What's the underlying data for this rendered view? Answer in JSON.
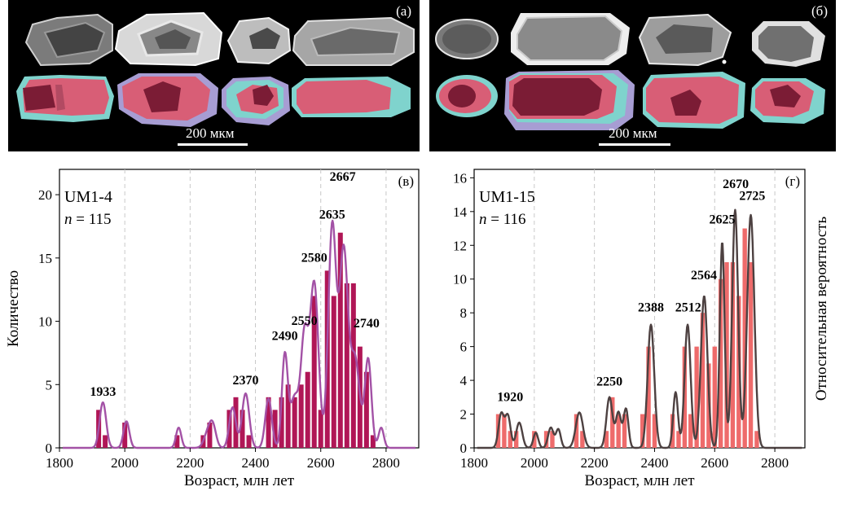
{
  "photos": [
    {
      "tag": "(а)",
      "scale_label": "200 мкм"
    },
    {
      "tag": "(б)",
      "scale_label": "200 мкм"
    }
  ],
  "colors": {
    "bar_left": "#b01656",
    "curve_left": "#a352a6",
    "bar_right": "#ee6b6b",
    "curve_right": "#4d4141",
    "zone_light": "#d85e76",
    "zone_dark": "#7b1c35",
    "zone_cyan": "#7fd3cd",
    "zone_violet": "#a79dd3"
  },
  "chart_data": [
    {
      "type": "bar",
      "panel": "(в)",
      "sample": "UM1-4",
      "n_label": "n",
      "n_value": "= 115",
      "xlabel": "Возраст, млн лет",
      "ylabel": "Количество",
      "xlim": [
        1800,
        2900
      ],
      "ylim": [
        0,
        22
      ],
      "xticks": [
        1800,
        2000,
        2200,
        2400,
        2600,
        2800
      ],
      "yticks": [
        0,
        5,
        10,
        15,
        20
      ],
      "grid_x": [
        2000,
        2200,
        2400,
        2600,
        2800
      ],
      "bin_width": 20,
      "bars": [
        {
          "x": 1920,
          "value": 3
        },
        {
          "x": 1940,
          "value": 1
        },
        {
          "x": 2000,
          "value": 2
        },
        {
          "x": 2160,
          "value": 1
        },
        {
          "x": 2240,
          "value": 1
        },
        {
          "x": 2260,
          "value": 2
        },
        {
          "x": 2320,
          "value": 3
        },
        {
          "x": 2340,
          "value": 4
        },
        {
          "x": 2360,
          "value": 3
        },
        {
          "x": 2380,
          "value": 1
        },
        {
          "x": 2440,
          "value": 4
        },
        {
          "x": 2460,
          "value": 3
        },
        {
          "x": 2480,
          "value": 4
        },
        {
          "x": 2500,
          "value": 5
        },
        {
          "x": 2520,
          "value": 4
        },
        {
          "x": 2540,
          "value": 5
        },
        {
          "x": 2560,
          "value": 6
        },
        {
          "x": 2580,
          "value": 12
        },
        {
          "x": 2600,
          "value": 3
        },
        {
          "x": 2620,
          "value": 14
        },
        {
          "x": 2640,
          "value": 12
        },
        {
          "x": 2660,
          "value": 17
        },
        {
          "x": 2680,
          "value": 13
        },
        {
          "x": 2700,
          "value": 13
        },
        {
          "x": 2720,
          "value": 8
        },
        {
          "x": 2740,
          "value": 6
        },
        {
          "x": 2760,
          "value": 1
        }
      ],
      "curve": [
        {
          "mu": 1933,
          "sd": 10,
          "h": 3.6
        },
        {
          "mu": 2005,
          "sd": 9,
          "h": 2.1
        },
        {
          "mu": 2165,
          "sd": 8,
          "h": 1.6
        },
        {
          "mu": 2255,
          "sd": 12,
          "h": 1.2
        },
        {
          "mu": 2270,
          "sd": 10,
          "h": 1.5
        },
        {
          "mu": 2330,
          "sd": 10,
          "h": 3.2
        },
        {
          "mu": 2370,
          "sd": 11,
          "h": 4.3
        },
        {
          "mu": 2440,
          "sd": 10,
          "h": 3.9
        },
        {
          "mu": 2490,
          "sd": 9,
          "h": 7.3
        },
        {
          "mu": 2520,
          "sd": 13,
          "h": 4.0
        },
        {
          "mu": 2550,
          "sd": 11,
          "h": 8.5
        },
        {
          "mu": 2580,
          "sd": 13,
          "h": 13.0
        },
        {
          "mu": 2635,
          "sd": 12,
          "h": 17.5
        },
        {
          "mu": 2670,
          "sd": 13,
          "h": 15.5
        },
        {
          "mu": 2705,
          "sd": 14,
          "h": 7.0
        },
        {
          "mu": 2745,
          "sd": 10,
          "h": 7.0
        },
        {
          "mu": 2785,
          "sd": 8,
          "h": 1.6
        }
      ],
      "peak_labels": [
        {
          "x": 1933,
          "y": 3.6,
          "text": "1933"
        },
        {
          "x": 2370,
          "y": 4.5,
          "text": "2370"
        },
        {
          "x": 2490,
          "y": 8.0,
          "text": "2490"
        },
        {
          "x": 2550,
          "y": 9.2,
          "text": "2550"
        },
        {
          "x": 2580,
          "y": 14.2,
          "text": "2580"
        },
        {
          "x": 2635,
          "y": 17.6,
          "text": "2635"
        },
        {
          "x": 2667,
          "y": 20.6,
          "text": "2667"
        },
        {
          "x": 2740,
          "y": 9.0,
          "text": "2740"
        }
      ]
    },
    {
      "type": "bar",
      "panel": "(г)",
      "sample": "UM1-15",
      "n_label": "n",
      "n_value": "= 116",
      "xlabel": "Возраст, млн лет",
      "ylabel": "Относительная вероятность",
      "xlim": [
        1800,
        2900
      ],
      "ylim": [
        0,
        16.5
      ],
      "xticks": [
        1800,
        2000,
        2200,
        2400,
        2600,
        2800
      ],
      "yticks": [
        0,
        2,
        4,
        6,
        8,
        10,
        12,
        14,
        16
      ],
      "grid_x": [
        2000,
        2200,
        2400,
        2600,
        2800
      ],
      "bin_width": 20,
      "bars": [
        {
          "x": 1880,
          "value": 2
        },
        {
          "x": 1900,
          "value": 2
        },
        {
          "x": 1920,
          "value": 1
        },
        {
          "x": 1940,
          "value": 1
        },
        {
          "x": 2000,
          "value": 1
        },
        {
          "x": 2040,
          "value": 1
        },
        {
          "x": 2060,
          "value": 1
        },
        {
          "x": 2140,
          "value": 2
        },
        {
          "x": 2160,
          "value": 1
        },
        {
          "x": 2240,
          "value": 1
        },
        {
          "x": 2260,
          "value": 3
        },
        {
          "x": 2280,
          "value": 2
        },
        {
          "x": 2300,
          "value": 2
        },
        {
          "x": 2360,
          "value": 2
        },
        {
          "x": 2380,
          "value": 6
        },
        {
          "x": 2400,
          "value": 2
        },
        {
          "x": 2460,
          "value": 2
        },
        {
          "x": 2480,
          "value": 1
        },
        {
          "x": 2500,
          "value": 6
        },
        {
          "x": 2520,
          "value": 2
        },
        {
          "x": 2540,
          "value": 6
        },
        {
          "x": 2560,
          "value": 8
        },
        {
          "x": 2580,
          "value": 5
        },
        {
          "x": 2600,
          "value": 6
        },
        {
          "x": 2620,
          "value": 10
        },
        {
          "x": 2640,
          "value": 11
        },
        {
          "x": 2660,
          "value": 11
        },
        {
          "x": 2680,
          "value": 9
        },
        {
          "x": 2700,
          "value": 13
        },
        {
          "x": 2720,
          "value": 11
        },
        {
          "x": 2740,
          "value": 1
        }
      ],
      "curve": [
        {
          "mu": 1890,
          "sd": 9,
          "h": 2.0
        },
        {
          "mu": 1912,
          "sd": 9,
          "h": 1.9
        },
        {
          "mu": 1950,
          "sd": 10,
          "h": 1.5
        },
        {
          "mu": 2005,
          "sd": 8,
          "h": 0.9
        },
        {
          "mu": 2055,
          "sd": 9,
          "h": 1.2
        },
        {
          "mu": 2080,
          "sd": 8,
          "h": 1.1
        },
        {
          "mu": 2150,
          "sd": 12,
          "h": 2.1
        },
        {
          "mu": 2250,
          "sd": 10,
          "h": 3.0
        },
        {
          "mu": 2280,
          "sd": 9,
          "h": 2.1
        },
        {
          "mu": 2305,
          "sd": 8,
          "h": 2.3
        },
        {
          "mu": 2388,
          "sd": 11,
          "h": 7.3
        },
        {
          "mu": 2470,
          "sd": 8,
          "h": 3.3
        },
        {
          "mu": 2510,
          "sd": 10,
          "h": 7.3
        },
        {
          "mu": 2565,
          "sd": 11,
          "h": 9.0
        },
        {
          "mu": 2625,
          "sd": 8,
          "h": 12.2
        },
        {
          "mu": 2668,
          "sd": 10,
          "h": 14.1
        },
        {
          "mu": 2720,
          "sd": 12,
          "h": 13.8
        }
      ],
      "peak_labels": [
        {
          "x": 1920,
          "y": 2.4,
          "text": "1920"
        },
        {
          "x": 2250,
          "y": 3.3,
          "text": "2250"
        },
        {
          "x": 2388,
          "y": 7.7,
          "text": "2388"
        },
        {
          "x": 2512,
          "y": 7.7,
          "text": "2512"
        },
        {
          "x": 2564,
          "y": 9.6,
          "text": "2564"
        },
        {
          "x": 2625,
          "y": 12.9,
          "text": "2625"
        },
        {
          "x": 2670,
          "y": 15.0,
          "text": "2670"
        },
        {
          "x": 2725,
          "y": 14.3,
          "text": "2725"
        }
      ]
    }
  ]
}
